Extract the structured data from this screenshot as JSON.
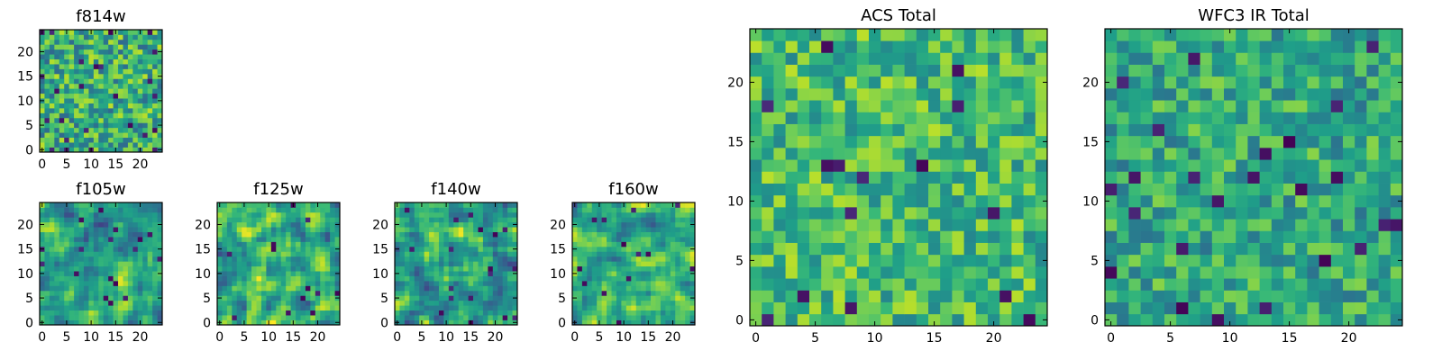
{
  "figure": {
    "description_free": true,
    "colormap": "viridis",
    "grid_size": [
      25,
      25
    ],
    "pixel_value_range": [
      0,
      1
    ]
  },
  "chart_data": [
    {
      "id": "f814w",
      "type": "heatmap",
      "title": "f814w",
      "xlim": [
        0,
        24
      ],
      "ylim": [
        0,
        24
      ],
      "xticks": [
        0,
        5,
        10,
        15,
        20
      ],
      "yticks": [
        0,
        5,
        10,
        15,
        20
      ],
      "seed": 814,
      "smooth": 0,
      "bias": 0.62,
      "spread": 0.28,
      "dark_rate": 0.05
    },
    {
      "id": "f105w",
      "type": "heatmap",
      "title": "f105w",
      "xlim": [
        0,
        24
      ],
      "ylim": [
        0,
        24
      ],
      "xticks": [
        0,
        5,
        10,
        15,
        20
      ],
      "yticks": [
        0,
        5,
        10,
        15,
        20
      ],
      "seed": 105,
      "smooth": 1,
      "bias": 0.58,
      "spread": 0.38,
      "dark_rate": 0.02
    },
    {
      "id": "f125w",
      "type": "heatmap",
      "title": "f125w",
      "xlim": [
        0,
        24
      ],
      "ylim": [
        0,
        24
      ],
      "xticks": [
        0,
        5,
        10,
        15,
        20
      ],
      "yticks": [
        0,
        5,
        10,
        15,
        20
      ],
      "seed": 125,
      "smooth": 1,
      "bias": 0.62,
      "spread": 0.38,
      "dark_rate": 0.02
    },
    {
      "id": "f140w",
      "type": "heatmap",
      "title": "f140w",
      "xlim": [
        0,
        24
      ],
      "ylim": [
        0,
        24
      ],
      "xticks": [
        0,
        5,
        10,
        15,
        20
      ],
      "yticks": [
        0,
        5,
        10,
        15,
        20
      ],
      "seed": 140,
      "smooth": 1,
      "bias": 0.6,
      "spread": 0.38,
      "dark_rate": 0.02
    },
    {
      "id": "f160w",
      "type": "heatmap",
      "title": "f160w",
      "xlim": [
        0,
        24
      ],
      "ylim": [
        0,
        24
      ],
      "xticks": [
        0,
        5,
        10,
        15,
        20
      ],
      "yticks": [
        0,
        5,
        10,
        15,
        20
      ],
      "seed": 160,
      "smooth": 1,
      "bias": 0.6,
      "spread": 0.38,
      "dark_rate": 0.02
    },
    {
      "id": "acs-total",
      "type": "heatmap",
      "title": "ACS Total",
      "xlim": [
        0,
        24
      ],
      "ylim": [
        0,
        24
      ],
      "xticks": [
        0,
        5,
        10,
        15,
        20
      ],
      "yticks": [
        0,
        5,
        10,
        15,
        20
      ],
      "seed": 7,
      "smooth": 0,
      "bias": 0.68,
      "spread": 0.22,
      "dark_rate": 0.025
    },
    {
      "id": "wfc3-ir-total",
      "type": "heatmap",
      "title": "WFC3 IR Total",
      "xlim": [
        0,
        24
      ],
      "ylim": [
        0,
        24
      ],
      "xticks": [
        0,
        5,
        10,
        15,
        20
      ],
      "yticks": [
        0,
        5,
        10,
        15,
        20
      ],
      "seed": 33,
      "smooth": 0,
      "bias": 0.6,
      "spread": 0.22,
      "dark_rate": 0.03
    }
  ]
}
